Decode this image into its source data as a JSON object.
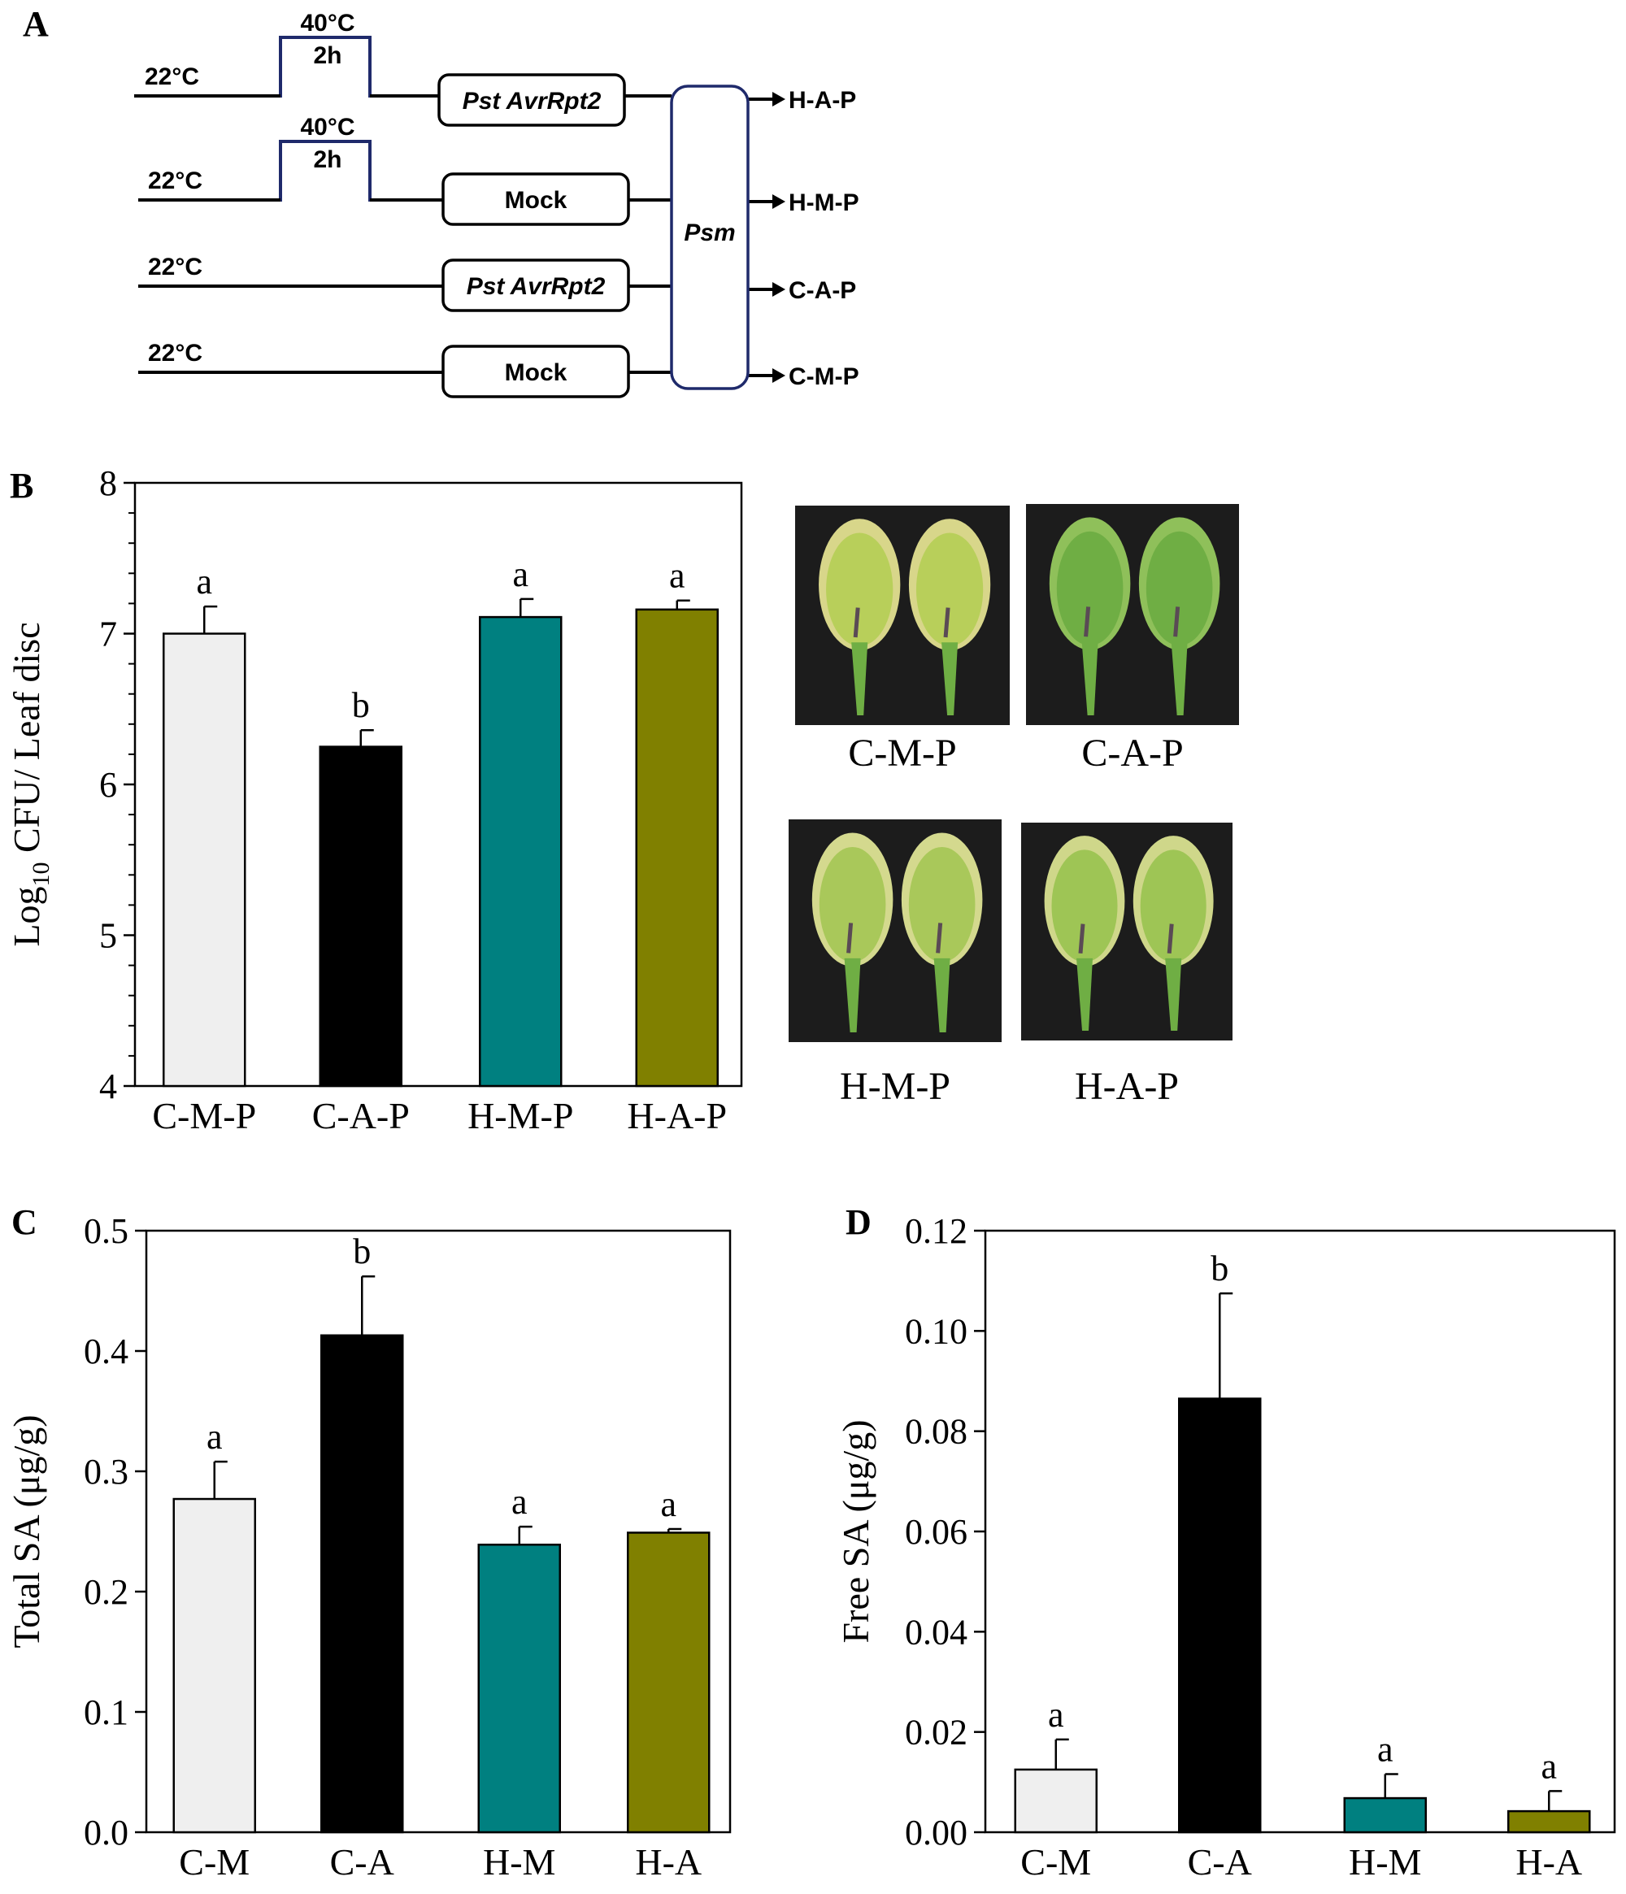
{
  "panels": {
    "a": "A",
    "b": "B",
    "c": "C",
    "d": "D"
  },
  "diagram": {
    "rows": [
      {
        "base_temp": "22°C",
        "heat_temp": "40°C",
        "heat_time": "2h",
        "treatment": "Pst AvrRpt2",
        "treatment_italic": true,
        "output": "H-A-P"
      },
      {
        "base_temp": "22°C",
        "heat_temp": "40°C",
        "heat_time": "2h",
        "treatment": "Mock",
        "treatment_italic": false,
        "output": "H-M-P"
      },
      {
        "base_temp": "22°C",
        "heat_temp": "",
        "heat_time": "",
        "treatment": "Pst AvrRpt2",
        "treatment_italic": true,
        "output": "C-A-P"
      },
      {
        "base_temp": "22°C",
        "heat_temp": "",
        "heat_time": "",
        "treatment": "Mock",
        "treatment_italic": false,
        "output": "C-M-P"
      }
    ],
    "infection_box": "Psm",
    "heat_line_color": "#1f2a6b"
  },
  "photos": [
    {
      "label": "C-M-P",
      "leaf_color": "#b8cf5a",
      "edge_color": "#d8d68a"
    },
    {
      "label": "C-A-P",
      "leaf_color": "#6fae44",
      "edge_color": "#8fc05a"
    },
    {
      "label": "H-M-P",
      "leaf_color": "#a9c85a",
      "edge_color": "#d4d98e"
    },
    {
      "label": "H-A-P",
      "leaf_color": "#9ec555",
      "edge_color": "#cfd78a"
    }
  ],
  "chart_data": [
    {
      "panel": "B",
      "type": "bar",
      "categories": [
        "C-M-P",
        "C-A-P",
        "H-M-P",
        "H-A-P"
      ],
      "values": [
        7.0,
        6.25,
        7.11,
        7.16
      ],
      "errors": [
        0.18,
        0.11,
        0.12,
        0.06
      ],
      "significance": [
        "a",
        "b",
        "a",
        "a"
      ],
      "colors": [
        "#efefef",
        "#000000",
        "#008080",
        "#808000"
      ],
      "ylabel_prefix": "Log",
      "ylabel_sub": "10",
      "ylabel_suffix": " CFU/ Leaf disc",
      "ylim": [
        4,
        8
      ],
      "yticks": [
        4,
        5,
        6,
        7,
        8
      ],
      "ytick_labels": [
        "4",
        "5",
        "6",
        "7",
        "8"
      ],
      "minor_ticks": 5
    },
    {
      "panel": "C",
      "type": "bar",
      "categories": [
        "C-M",
        "C-A",
        "H-M",
        "H-A"
      ],
      "values": [
        0.277,
        0.413,
        0.239,
        0.249
      ],
      "errors": [
        0.031,
        0.049,
        0.015,
        0.003
      ],
      "significance": [
        "a",
        "b",
        "a",
        "a"
      ],
      "colors": [
        "#efefef",
        "#000000",
        "#008080",
        "#808000"
      ],
      "ylabel": "Total SA (μg/g)",
      "ylim": [
        0,
        0.5
      ],
      "yticks": [
        0,
        0.1,
        0.2,
        0.3,
        0.4,
        0.5
      ],
      "ytick_labels": [
        "0.0",
        "0.1",
        "0.2",
        "0.3",
        "0.4",
        "0.5"
      ],
      "minor_ticks": 0
    },
    {
      "panel": "D",
      "type": "bar",
      "categories": [
        "C-M",
        "C-A",
        "H-M",
        "H-A"
      ],
      "values": [
        0.0125,
        0.0865,
        0.0068,
        0.0042
      ],
      "errors": [
        0.006,
        0.021,
        0.0048,
        0.004
      ],
      "significance": [
        "a",
        "b",
        "a",
        "a"
      ],
      "colors": [
        "#efefef",
        "#000000",
        "#008080",
        "#808000"
      ],
      "ylabel": "Free SA (μg/g)",
      "ylim": [
        0,
        0.12
      ],
      "yticks": [
        0,
        0.02,
        0.04,
        0.06,
        0.08,
        0.1,
        0.12
      ],
      "ytick_labels": [
        "0.00",
        "0.02",
        "0.04",
        "0.06",
        "0.08",
        "0.10",
        "0.12"
      ],
      "minor_ticks": 0
    }
  ]
}
